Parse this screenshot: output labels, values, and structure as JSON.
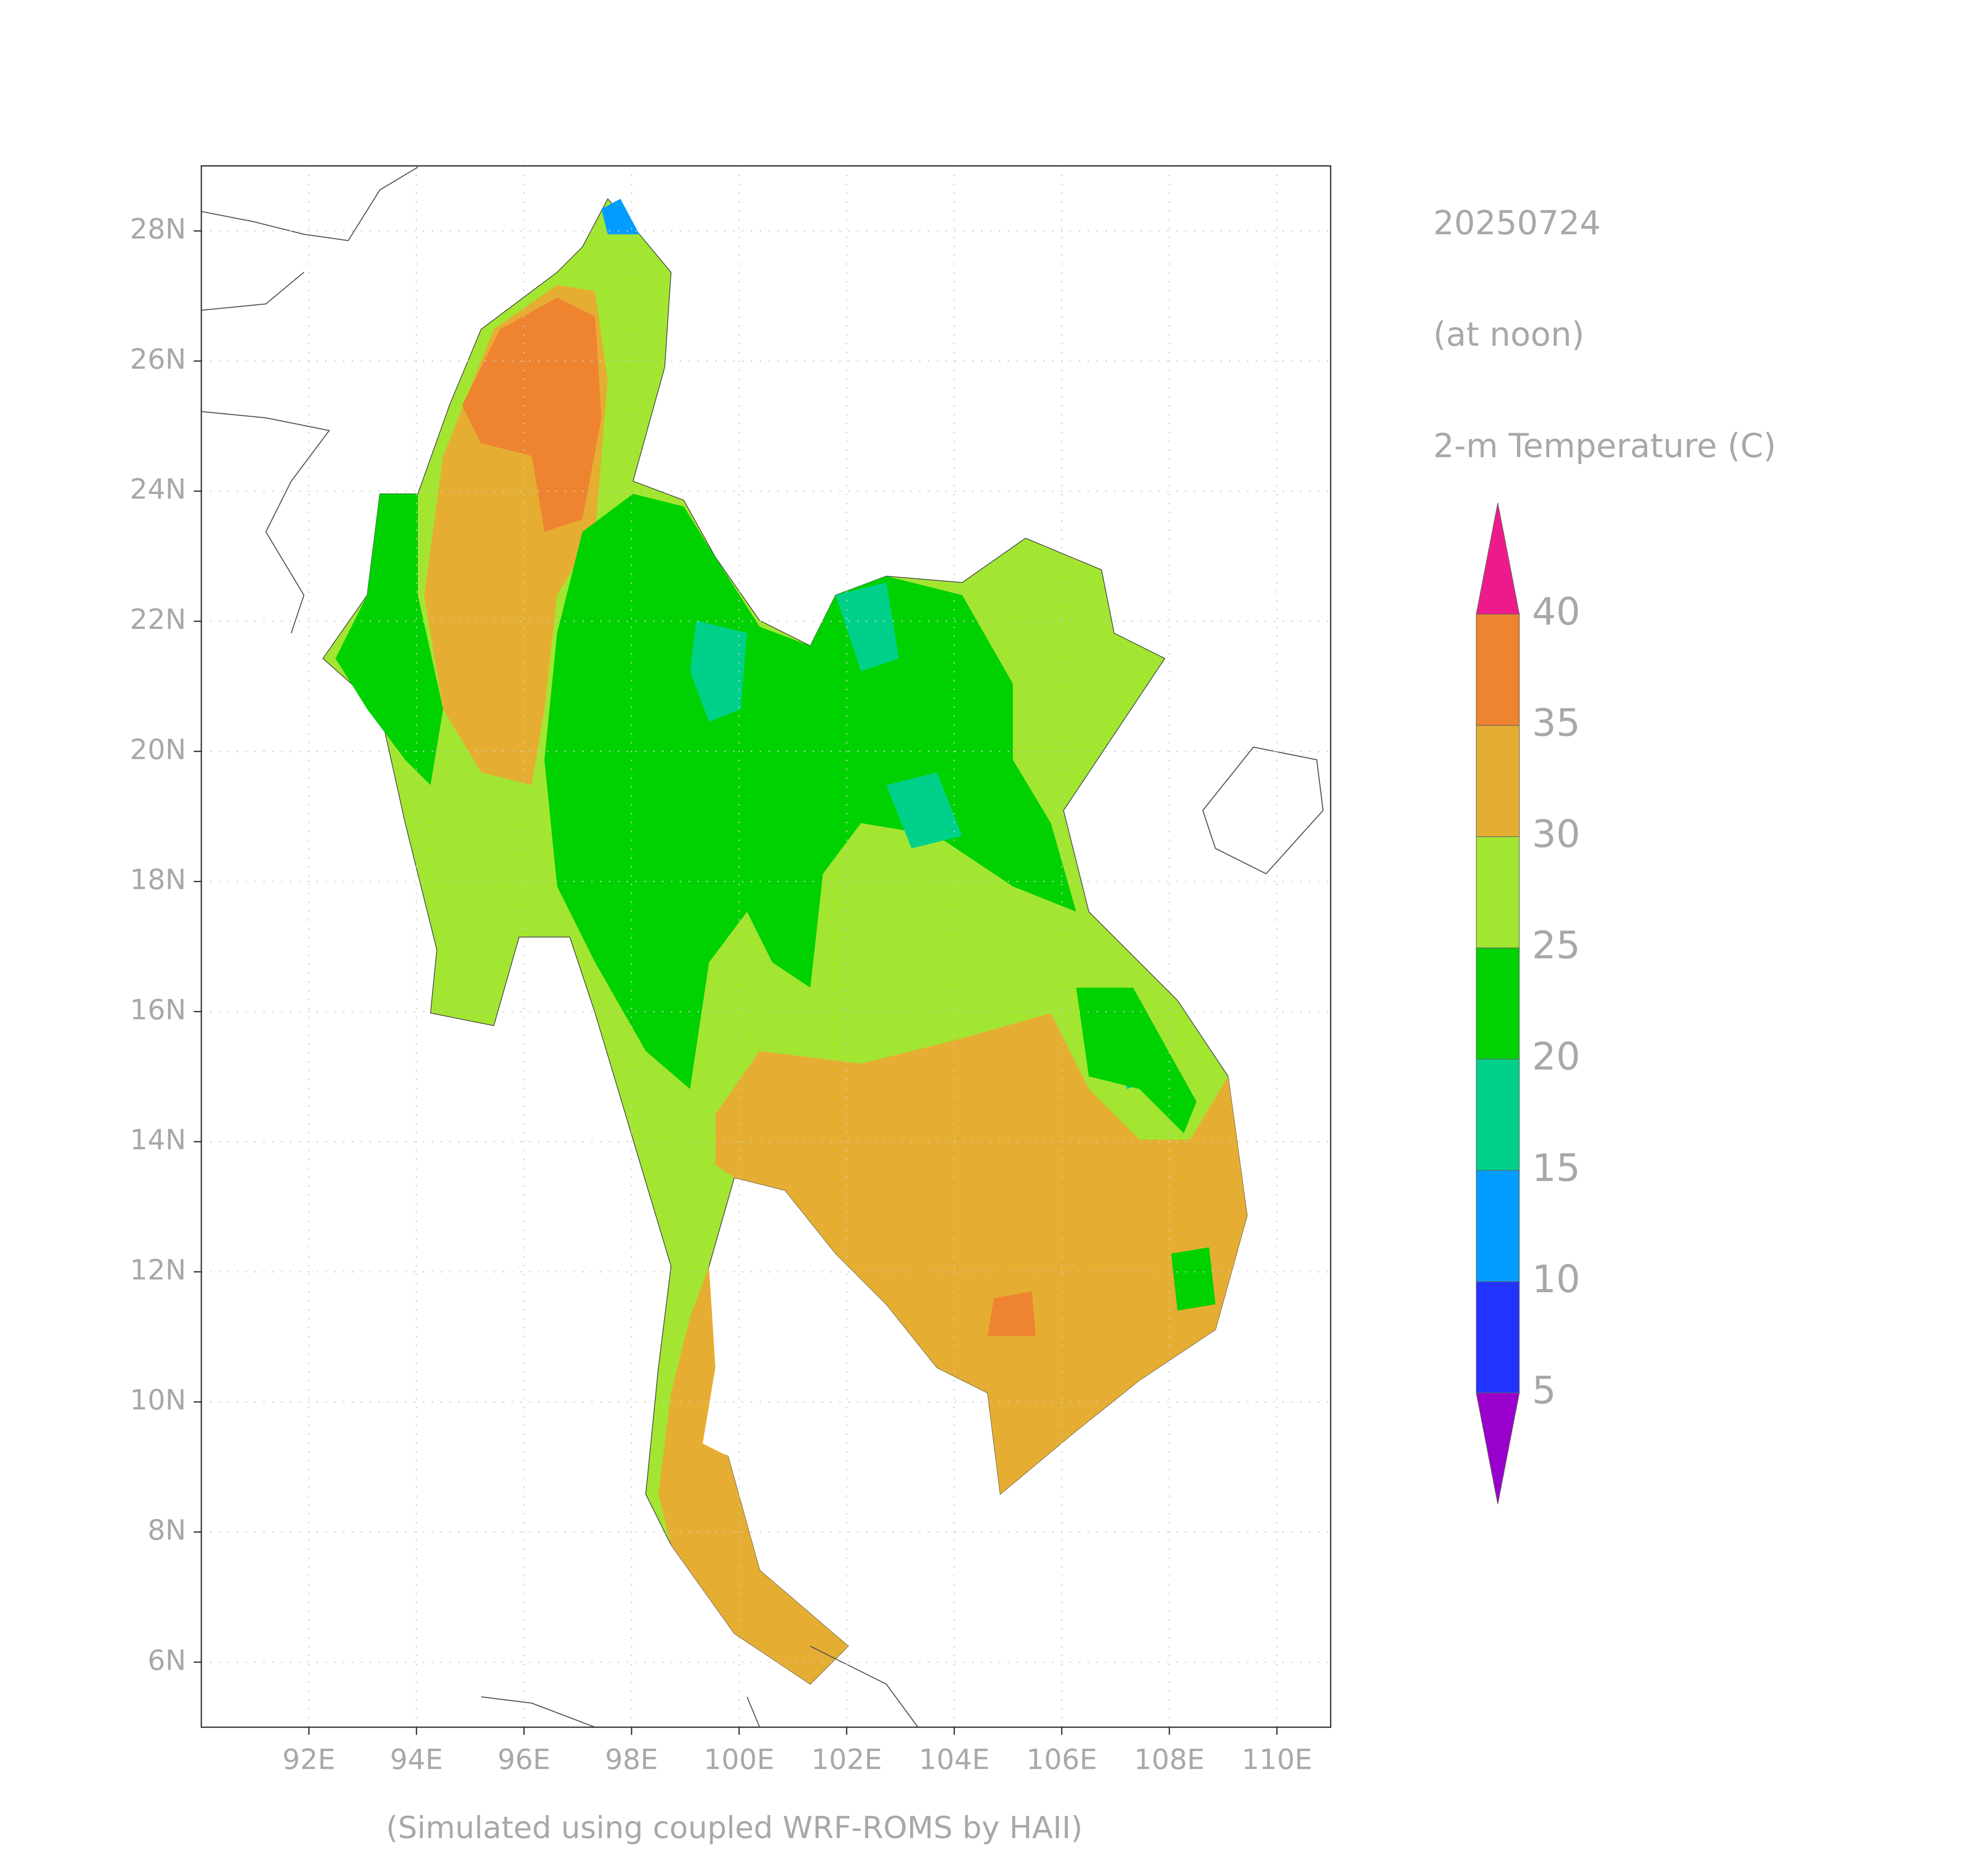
{
  "chart_data": {
    "type": "map",
    "title": "20250724",
    "subtitle": "(at noon)",
    "variable": "2-m Temperature (C)",
    "footer": "(Simulated using coupled WRF-ROMS by HAII)",
    "xlim": [
      90,
      111
    ],
    "ylim": [
      5,
      29
    ],
    "xticks": [
      {
        "value": 92,
        "label": "92E"
      },
      {
        "value": 94,
        "label": "94E"
      },
      {
        "value": 96,
        "label": "96E"
      },
      {
        "value": 98,
        "label": "98E"
      },
      {
        "value": 100,
        "label": "100E"
      },
      {
        "value": 102,
        "label": "102E"
      },
      {
        "value": 104,
        "label": "104E"
      },
      {
        "value": 106,
        "label": "106E"
      },
      {
        "value": 108,
        "label": "108E"
      },
      {
        "value": 110,
        "label": "110E"
      }
    ],
    "yticks": [
      {
        "value": 6,
        "label": "6N"
      },
      {
        "value": 8,
        "label": "8N"
      },
      {
        "value": 10,
        "label": "10N"
      },
      {
        "value": 12,
        "label": "12N"
      },
      {
        "value": 14,
        "label": "14N"
      },
      {
        "value": 16,
        "label": "16N"
      },
      {
        "value": 18,
        "label": "18N"
      },
      {
        "value": 20,
        "label": "20N"
      },
      {
        "value": 22,
        "label": "22N"
      },
      {
        "value": 24,
        "label": "24N"
      },
      {
        "value": 26,
        "label": "26N"
      },
      {
        "value": 28,
        "label": "28N"
      }
    ],
    "grid": true,
    "colorbar": {
      "levels": [
        5,
        10,
        15,
        20,
        25,
        30,
        35,
        40
      ],
      "colors": [
        "#9a00cc",
        "#2233ff",
        "#009cff",
        "#00d18a",
        "#00d100",
        "#a2e632",
        "#e5ae32",
        "#ee8330",
        "#ee1a8c"
      ]
    }
  }
}
